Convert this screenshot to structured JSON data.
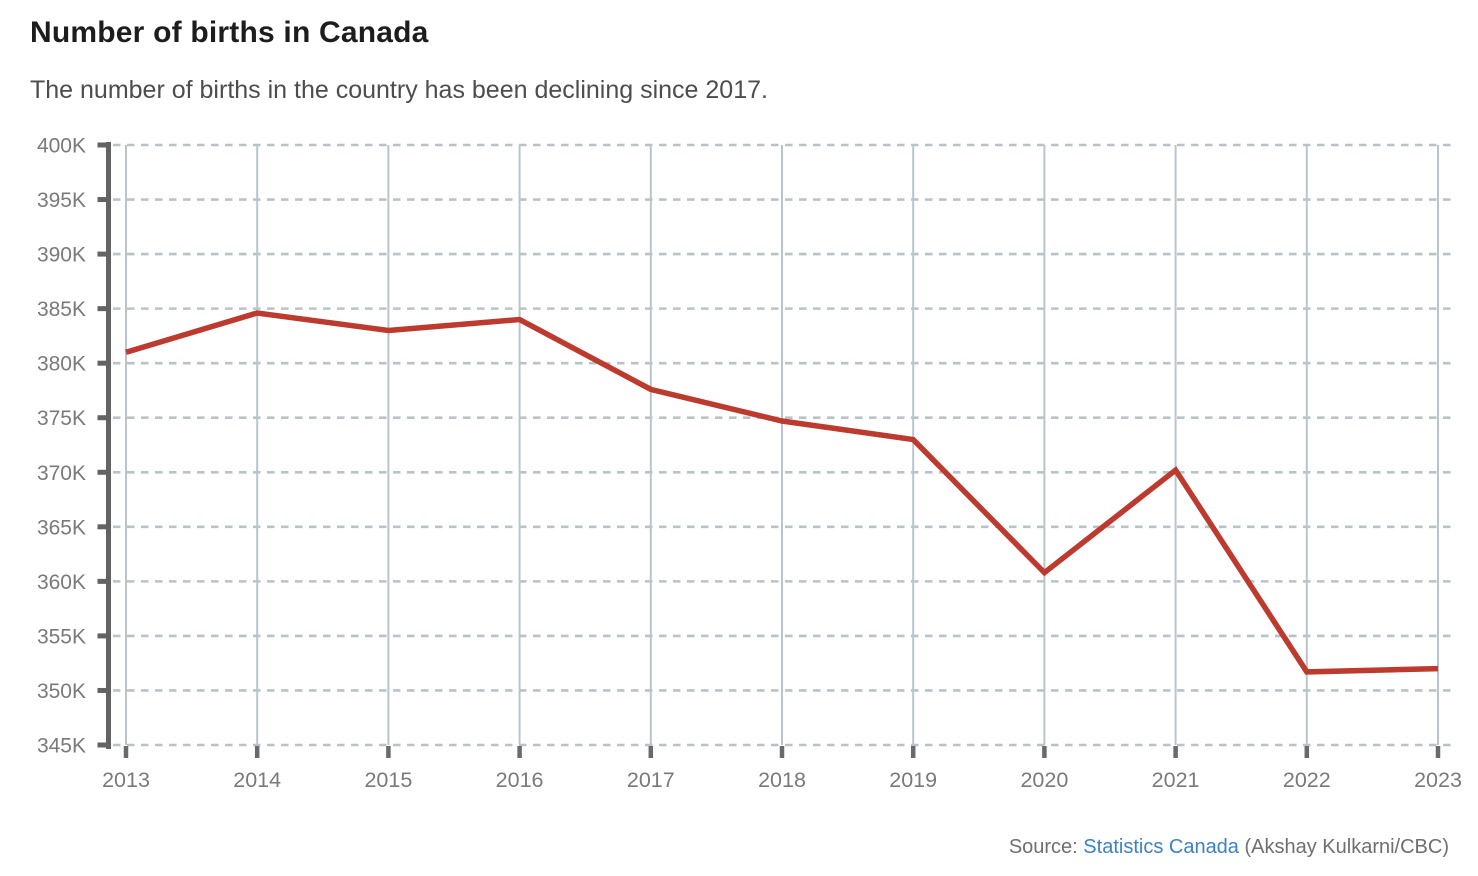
{
  "header": {
    "title": "Number of births in Canada",
    "subtitle": "The number of births in the country has been declining since 2017."
  },
  "source": {
    "prefix": "Source: ",
    "link_text": "Statistics Canada",
    "suffix": " (Akshay Kulkarni/CBC)"
  },
  "colors": {
    "line": "#bd3a2e",
    "axis": "#636363",
    "tick_label": "#7a7a7a",
    "h_gridline_dashed": "#b7c3c9",
    "v_gridline_solid": "#bac5cb",
    "title": "#1d1d1d",
    "subtitle": "#4d4d4d",
    "source_text": "#6f6f6f",
    "source_link": "#3b82c4"
  },
  "chart_data": {
    "type": "line",
    "title": "Number of births in Canada",
    "subtitle": "The number of births in the country has been declining since 2017.",
    "x": [
      2013,
      2014,
      2015,
      2016,
      2017,
      2018,
      2019,
      2020,
      2021,
      2022,
      2023
    ],
    "x_tick_labels": [
      "2013",
      "2014",
      "2015",
      "2016",
      "2017",
      "2018",
      "2019",
      "2020",
      "2021",
      "2022",
      "2023"
    ],
    "series": [
      {
        "name": "Number of births",
        "values": [
          381000,
          384600,
          383000,
          384000,
          377600,
          374700,
          373000,
          360800,
          370200,
          351700,
          352000
        ]
      }
    ],
    "xlabel": "",
    "ylabel": "",
    "ylim": [
      345000,
      400000
    ],
    "ytick_step": 5000,
    "y_tick_labels": [
      "400K",
      "395K",
      "390K",
      "385K",
      "380K",
      "375K",
      "370K",
      "365K",
      "360K",
      "355K",
      "350K",
      "345K"
    ],
    "grid": "horizontal dashed + vertical solid",
    "legend": "none",
    "line_color": "#bd3a2e"
  }
}
